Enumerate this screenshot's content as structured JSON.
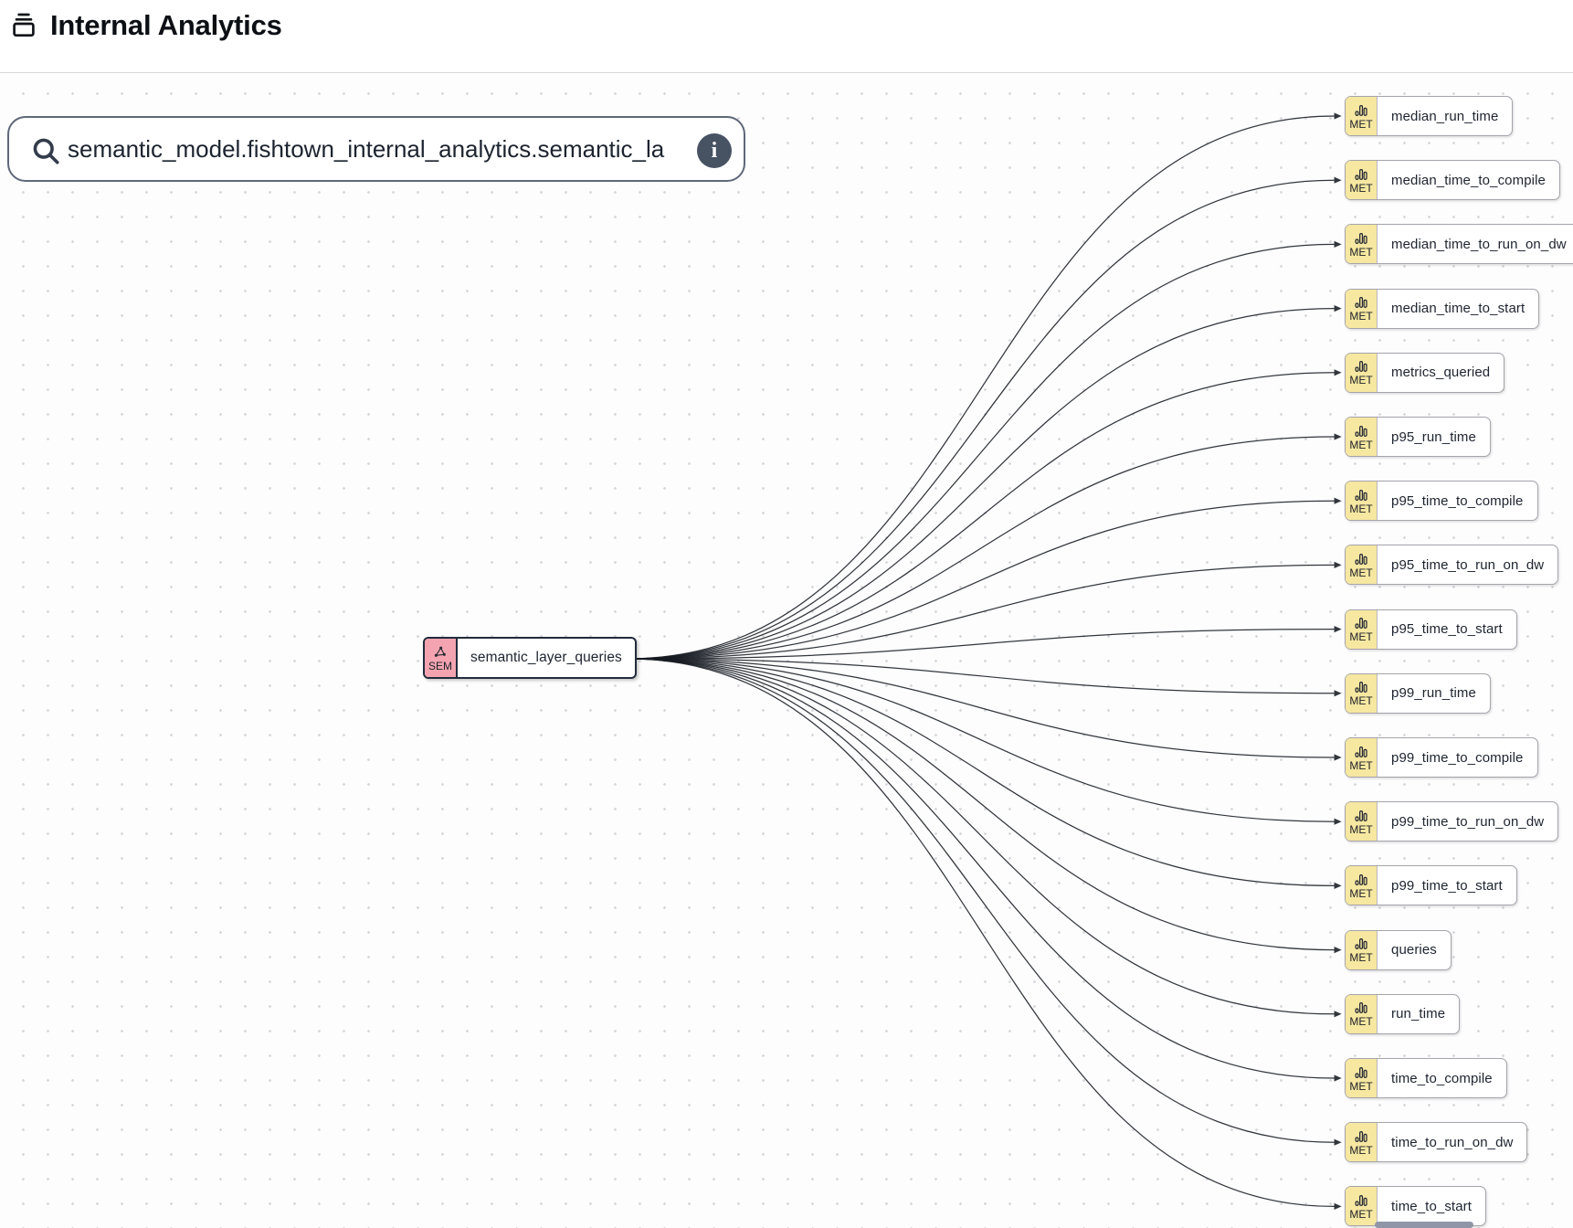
{
  "header": {
    "title": "Internal Analytics",
    "icon": "database-stack-icon"
  },
  "search": {
    "value": "semantic_model.fishtown_internal_analytics.semantic_la",
    "search_icon": "magnifier-icon",
    "info_icon_glyph": "i"
  },
  "graph": {
    "source_node": {
      "type_label": "SEM",
      "name": "semantic_layer_queries",
      "badge_color": "#f3a4b0",
      "icon": "share-network-icon"
    },
    "metric_badge": {
      "type_label": "MET",
      "badge_color": "#f6e7a1",
      "icon": "bar-chart-icon"
    },
    "metrics": [
      "median_run_time",
      "median_time_to_compile",
      "median_time_to_run_on_dw",
      "median_time_to_start",
      "metrics_queried",
      "p95_run_time",
      "p95_time_to_compile",
      "p95_time_to_run_on_dw",
      "p95_time_to_start",
      "p99_run_time",
      "p99_time_to_compile",
      "p99_time_to_run_on_dw",
      "p99_time_to_start",
      "queries",
      "run_time",
      "time_to_compile",
      "time_to_run_on_dw",
      "time_to_start"
    ],
    "edge_color": "#171b22"
  }
}
